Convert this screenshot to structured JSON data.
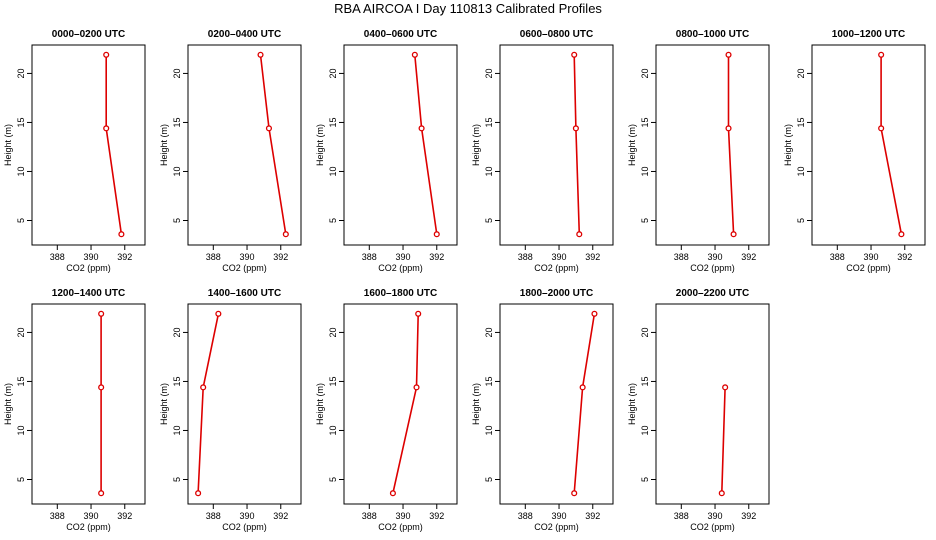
{
  "title": "RBA AIRCOA I  Day 110813  Calibrated Profiles",
  "chart_data": {
    "type": "line",
    "xlabel": "CO2 (ppm)",
    "ylabel": "Height (m)",
    "xlim": [
      386.5,
      393.2
    ],
    "ylim": [
      2.5,
      22.9
    ],
    "xticks": [
      388,
      390,
      392
    ],
    "yticks": [
      5,
      10,
      15,
      20
    ],
    "colors": {
      "line": "#dd0000",
      "marker": "#dd0000",
      "axis": "#000000"
    },
    "panels": [
      {
        "title": "0000–0200 UTC",
        "points": [
          {
            "x": 391.8,
            "y": 3.6
          },
          {
            "x": 390.9,
            "y": 14.4
          },
          {
            "x": 390.9,
            "y": 21.9
          }
        ]
      },
      {
        "title": "0200–0400 UTC",
        "points": [
          {
            "x": 392.3,
            "y": 3.6
          },
          {
            "x": 391.3,
            "y": 14.4
          },
          {
            "x": 390.8,
            "y": 21.9
          }
        ]
      },
      {
        "title": "0400–0600 UTC",
        "points": [
          {
            "x": 392.0,
            "y": 3.6
          },
          {
            "x": 391.1,
            "y": 14.4
          },
          {
            "x": 390.7,
            "y": 21.9
          }
        ]
      },
      {
        "title": "0600–0800 UTC",
        "points": [
          {
            "x": 391.2,
            "y": 3.6
          },
          {
            "x": 391.0,
            "y": 14.4
          },
          {
            "x": 390.9,
            "y": 21.9
          }
        ]
      },
      {
        "title": "0800–1000 UTC",
        "points": [
          {
            "x": 391.1,
            "y": 3.6
          },
          {
            "x": 390.8,
            "y": 14.4
          },
          {
            "x": 390.8,
            "y": 21.9
          }
        ]
      },
      {
        "title": "1000–1200 UTC",
        "points": [
          {
            "x": 391.8,
            "y": 3.6
          },
          {
            "x": 390.6,
            "y": 14.4
          },
          {
            "x": 390.6,
            "y": 21.9
          }
        ]
      },
      {
        "title": "1200–1400 UTC",
        "points": [
          {
            "x": 390.6,
            "y": 3.6
          },
          {
            "x": 390.6,
            "y": 14.4
          },
          {
            "x": 390.6,
            "y": 21.9
          }
        ]
      },
      {
        "title": "1400–1600 UTC",
        "points": [
          {
            "x": 387.1,
            "y": 3.6
          },
          {
            "x": 387.4,
            "y": 14.4
          },
          {
            "x": 388.3,
            "y": 21.9
          }
        ]
      },
      {
        "title": "1600–1800 UTC",
        "points": [
          {
            "x": 389.4,
            "y": 3.6
          },
          {
            "x": 390.8,
            "y": 14.4
          },
          {
            "x": 390.9,
            "y": 21.9
          }
        ]
      },
      {
        "title": "1800–2000 UTC",
        "points": [
          {
            "x": 390.9,
            "y": 3.6
          },
          {
            "x": 391.4,
            "y": 14.4
          },
          {
            "x": 392.1,
            "y": 21.9
          }
        ]
      },
      {
        "title": "2000–2200 UTC",
        "points": [
          {
            "x": 390.4,
            "y": 3.6
          },
          {
            "x": 390.6,
            "y": 14.4
          }
        ]
      }
    ]
  }
}
